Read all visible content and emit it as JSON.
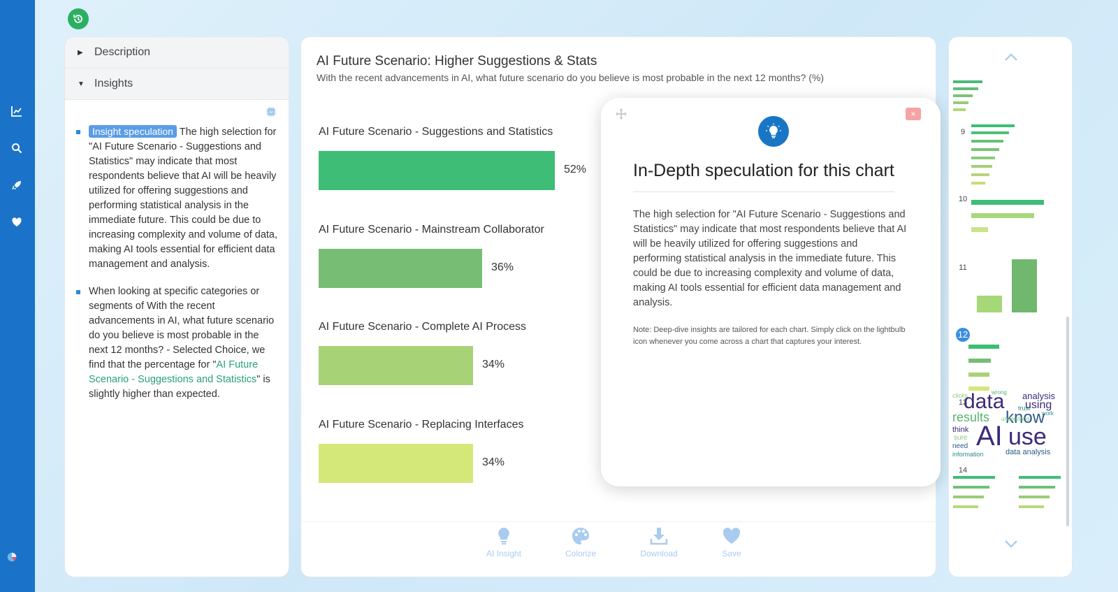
{
  "colors": {
    "rail": "#1a73c9",
    "accent": "#2a8ad8",
    "bar1": "#3dbd75",
    "bar2": "#78bd74",
    "bar3": "#a8d276",
    "bar4": "#d4e87a"
  },
  "left_panel": {
    "description_label": "Description",
    "insights_label": "Insights",
    "insight1_chip": "Insight speculation",
    "insight1_text": " The high selection for \"AI Future Scenario - Suggestions and Statistics\" may indicate that most respondents believe that AI will be heavily utilized for offering suggestions and performing statistical analysis in the immediate future. This could be due to increasing complexity and volume of data, making AI tools essential for efficient data management and analysis.",
    "insight2_pre": "When looking at specific categories or segments of With the recent advancements in AI, what future scenario do you believe is most probable in the next 12 months? - Selected Choice, we find that the percentage for \"",
    "insight2_link": "AI Future Scenario - Suggestions and Statistics",
    "insight2_post": "\" is slightly higher than expected."
  },
  "main": {
    "title": "AI Future Scenario: Higher Suggestions & Stats",
    "subtitle": "With the recent advancements in AI, what future scenario do you believe is most probable in the next 12 months? (%)",
    "tools": [
      {
        "label": "AI Insight",
        "icon": "lightbulb-icon"
      },
      {
        "label": "Colorize",
        "icon": "palette-icon"
      },
      {
        "label": "Download",
        "icon": "download-icon"
      },
      {
        "label": "Save",
        "icon": "heart-icon"
      }
    ]
  },
  "chart_data": {
    "type": "bar",
    "orientation": "horizontal",
    "categories": [
      "AI Future Scenario - Suggestions and Statistics",
      "AI Future Scenario - Mainstream Collaborator",
      "AI Future Scenario - Complete AI Process",
      "AI Future Scenario - Replacing Interfaces"
    ],
    "values": [
      52,
      36,
      34,
      34
    ],
    "value_labels": [
      "52%",
      "36%",
      "34%",
      "34%"
    ],
    "title": "AI Future Scenario: Higher Suggestions & Stats",
    "xlim": [
      0,
      100
    ]
  },
  "popup": {
    "title": "In-Depth speculation for this chart",
    "close_label": "×",
    "body": "The high selection for \"AI Future Scenario - Suggestions and Statistics\" may indicate that most respondents believe that AI will be heavily utilized for offering suggestions and performing statistical analysis in the immediate future. This could be due to increasing complexity and volume of data, making AI tools essential for efficient data management and analysis.",
    "note": "Note: Deep-dive insights are tailored for each chart. Simply click on the lightbulb icon whenever you come across a chart that captures your interest."
  },
  "thumbnails": {
    "numbers": [
      "9",
      "10",
      "11",
      "12",
      "13",
      "14"
    ],
    "active": "12",
    "wordcloud": [
      "data",
      "AI",
      "use",
      "know",
      "results",
      "analysis",
      "using",
      "data analysis",
      "think",
      "information",
      "need",
      "sure",
      "understand",
      "wrong",
      "work",
      "trust",
      "clicks"
    ]
  }
}
